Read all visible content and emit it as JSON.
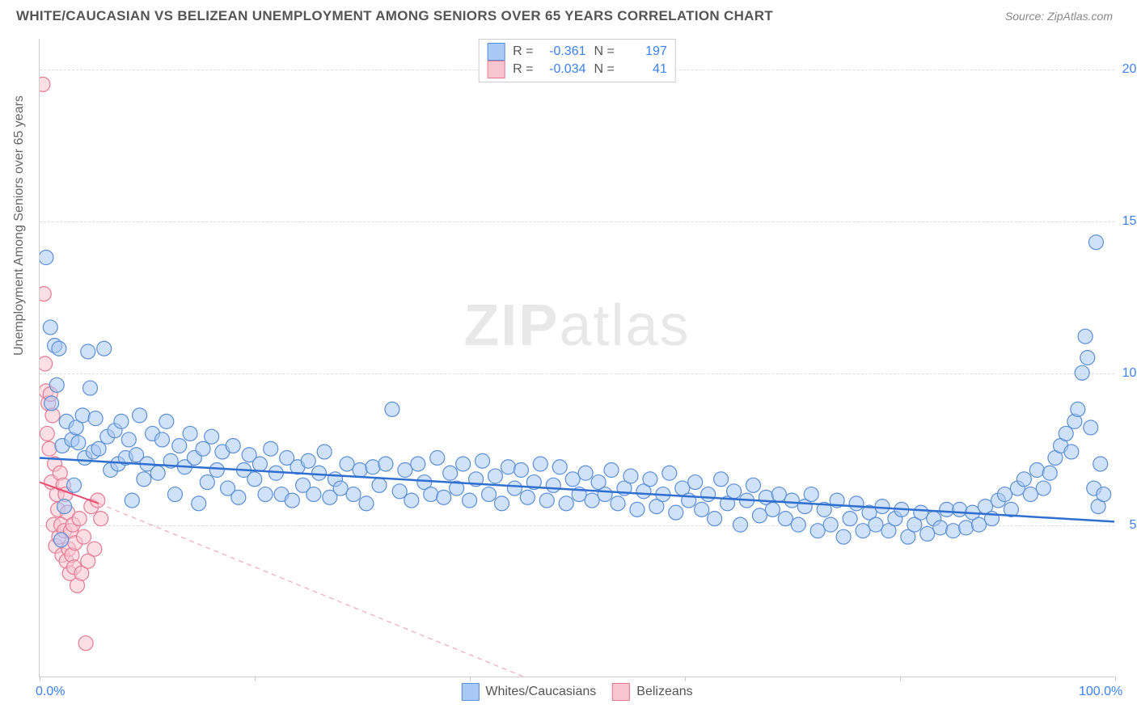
{
  "header": {
    "title": "WHITE/CAUCASIAN VS BELIZEAN UNEMPLOYMENT AMONG SENIORS OVER 65 YEARS CORRELATION CHART",
    "source": "Source: ZipAtlas.com"
  },
  "watermark": {
    "part1": "ZIP",
    "part2": "atlas"
  },
  "chart": {
    "type": "scatter",
    "y_axis_label": "Unemployment Among Seniors over 65 years",
    "xlim": [
      0,
      100
    ],
    "ylim": [
      0,
      21
    ],
    "x_ticks": [
      0,
      20,
      40,
      60,
      80,
      100
    ],
    "x_tick_labels": {
      "0": "0.0%",
      "100": "100.0%"
    },
    "y_ticks": [
      5,
      10,
      15,
      20
    ],
    "y_tick_labels": {
      "5": "5.0%",
      "10": "10.0%",
      "15": "15.0%",
      "20": "20.0%"
    },
    "background_color": "#ffffff",
    "grid_color": "#dddddd",
    "axis_color": "#cccccc",
    "label_color": "#3b82f6",
    "marker_radius": 9,
    "marker_opacity": 0.55,
    "marker_stroke_width": 1.2,
    "series": {
      "whites": {
        "label": "Whites/Caucasians",
        "fill_color": "#a9c9f5",
        "stroke_color": "#5b8fd6",
        "R": "-0.361",
        "N": "197",
        "trend_line": {
          "x1": 0,
          "y1": 7.2,
          "x2": 100,
          "y2": 5.1,
          "color": "#2f6fd0",
          "width": 2.5
        },
        "points": [
          [
            0.6,
            13.8
          ],
          [
            1,
            11.5
          ],
          [
            1.1,
            9
          ],
          [
            1.4,
            10.9
          ],
          [
            1.6,
            9.6
          ],
          [
            1.8,
            10.8
          ],
          [
            2,
            4.5
          ],
          [
            2.1,
            7.6
          ],
          [
            2.3,
            5.6
          ],
          [
            2.5,
            8.4
          ],
          [
            3,
            7.8
          ],
          [
            3.2,
            6.3
          ],
          [
            3.4,
            8.2
          ],
          [
            3.6,
            7.7
          ],
          [
            4,
            8.6
          ],
          [
            4.2,
            7.2
          ],
          [
            4.5,
            10.7
          ],
          [
            4.7,
            9.5
          ],
          [
            5,
            7.4
          ],
          [
            5.2,
            8.5
          ],
          [
            5.5,
            7.5
          ],
          [
            6,
            10.8
          ],
          [
            6.3,
            7.9
          ],
          [
            6.6,
            6.8
          ],
          [
            7,
            8.1
          ],
          [
            7.3,
            7
          ],
          [
            7.6,
            8.4
          ],
          [
            8,
            7.2
          ],
          [
            8.3,
            7.8
          ],
          [
            8.6,
            5.8
          ],
          [
            9,
            7.3
          ],
          [
            9.3,
            8.6
          ],
          [
            9.7,
            6.5
          ],
          [
            10,
            7
          ],
          [
            10.5,
            8.0
          ],
          [
            11,
            6.7
          ],
          [
            11.4,
            7.8
          ],
          [
            11.8,
            8.4
          ],
          [
            12.2,
            7.1
          ],
          [
            12.6,
            6.0
          ],
          [
            13,
            7.6
          ],
          [
            13.5,
            6.9
          ],
          [
            14,
            8.0
          ],
          [
            14.4,
            7.2
          ],
          [
            14.8,
            5.7
          ],
          [
            15.2,
            7.5
          ],
          [
            15.6,
            6.4
          ],
          [
            16,
            7.9
          ],
          [
            16.5,
            6.8
          ],
          [
            17,
            7.4
          ],
          [
            17.5,
            6.2
          ],
          [
            18,
            7.6
          ],
          [
            18.5,
            5.9
          ],
          [
            19,
            6.8
          ],
          [
            19.5,
            7.3
          ],
          [
            20,
            6.5
          ],
          [
            20.5,
            7.0
          ],
          [
            21,
            6.0
          ],
          [
            21.5,
            7.5
          ],
          [
            22,
            6.7
          ],
          [
            22.5,
            6.0
          ],
          [
            23,
            7.2
          ],
          [
            23.5,
            5.8
          ],
          [
            24,
            6.9
          ],
          [
            24.5,
            6.3
          ],
          [
            25,
            7.1
          ],
          [
            25.5,
            6.0
          ],
          [
            26,
            6.7
          ],
          [
            26.5,
            7.4
          ],
          [
            27,
            5.9
          ],
          [
            27.5,
            6.5
          ],
          [
            28,
            6.2
          ],
          [
            28.6,
            7.0
          ],
          [
            29.2,
            6.0
          ],
          [
            29.8,
            6.8
          ],
          [
            30.4,
            5.7
          ],
          [
            31,
            6.9
          ],
          [
            31.6,
            6.3
          ],
          [
            32.2,
            7.0
          ],
          [
            32.8,
            8.8
          ],
          [
            33.5,
            6.1
          ],
          [
            34,
            6.8
          ],
          [
            34.6,
            5.8
          ],
          [
            35.2,
            7.0
          ],
          [
            35.8,
            6.4
          ],
          [
            36.4,
            6.0
          ],
          [
            37,
            7.2
          ],
          [
            37.6,
            5.9
          ],
          [
            38.2,
            6.7
          ],
          [
            38.8,
            6.2
          ],
          [
            39.4,
            7.0
          ],
          [
            40,
            5.8
          ],
          [
            40.6,
            6.5
          ],
          [
            41.2,
            7.1
          ],
          [
            41.8,
            6.0
          ],
          [
            42.4,
            6.6
          ],
          [
            43,
            5.7
          ],
          [
            43.6,
            6.9
          ],
          [
            44.2,
            6.2
          ],
          [
            44.8,
            6.8
          ],
          [
            45.4,
            5.9
          ],
          [
            46,
            6.4
          ],
          [
            46.6,
            7.0
          ],
          [
            47.2,
            5.8
          ],
          [
            47.8,
            6.3
          ],
          [
            48.4,
            6.9
          ],
          [
            49,
            5.7
          ],
          [
            49.6,
            6.5
          ],
          [
            50.2,
            6.0
          ],
          [
            50.8,
            6.7
          ],
          [
            51.4,
            5.8
          ],
          [
            52,
            6.4
          ],
          [
            52.6,
            6.0
          ],
          [
            53.2,
            6.8
          ],
          [
            53.8,
            5.7
          ],
          [
            54.4,
            6.2
          ],
          [
            55,
            6.6
          ],
          [
            55.6,
            5.5
          ],
          [
            56.2,
            6.1
          ],
          [
            56.8,
            6.5
          ],
          [
            57.4,
            5.6
          ],
          [
            58,
            6.0
          ],
          [
            58.6,
            6.7
          ],
          [
            59.2,
            5.4
          ],
          [
            59.8,
            6.2
          ],
          [
            60.4,
            5.8
          ],
          [
            61,
            6.4
          ],
          [
            61.6,
            5.5
          ],
          [
            62.2,
            6.0
          ],
          [
            62.8,
            5.2
          ],
          [
            63.4,
            6.5
          ],
          [
            64,
            5.7
          ],
          [
            64.6,
            6.1
          ],
          [
            65.2,
            5.0
          ],
          [
            65.8,
            5.8
          ],
          [
            66.4,
            6.3
          ],
          [
            67,
            5.3
          ],
          [
            67.6,
            5.9
          ],
          [
            68.2,
            5.5
          ],
          [
            68.8,
            6.0
          ],
          [
            69.4,
            5.2
          ],
          [
            70,
            5.8
          ],
          [
            70.6,
            5.0
          ],
          [
            71.2,
            5.6
          ],
          [
            71.8,
            6.0
          ],
          [
            72.4,
            4.8
          ],
          [
            73,
            5.5
          ],
          [
            73.6,
            5.0
          ],
          [
            74.2,
            5.8
          ],
          [
            74.8,
            4.6
          ],
          [
            75.4,
            5.2
          ],
          [
            76,
            5.7
          ],
          [
            76.6,
            4.8
          ],
          [
            77.2,
            5.4
          ],
          [
            77.8,
            5.0
          ],
          [
            78.4,
            5.6
          ],
          [
            79,
            4.8
          ],
          [
            79.6,
            5.2
          ],
          [
            80.2,
            5.5
          ],
          [
            80.8,
            4.6
          ],
          [
            81.4,
            5.0
          ],
          [
            82,
            5.4
          ],
          [
            82.6,
            4.7
          ],
          [
            83.2,
            5.2
          ],
          [
            83.8,
            4.9
          ],
          [
            84.4,
            5.5
          ],
          [
            85,
            4.8
          ],
          [
            85.6,
            5.5
          ],
          [
            86.2,
            4.9
          ],
          [
            86.8,
            5.4
          ],
          [
            87.4,
            5.0
          ],
          [
            88,
            5.6
          ],
          [
            88.6,
            5.2
          ],
          [
            89.2,
            5.8
          ],
          [
            89.8,
            6.0
          ],
          [
            90.4,
            5.5
          ],
          [
            91,
            6.2
          ],
          [
            91.6,
            6.5
          ],
          [
            92.2,
            6.0
          ],
          [
            92.8,
            6.8
          ],
          [
            93.4,
            6.2
          ],
          [
            94,
            6.7
          ],
          [
            94.5,
            7.2
          ],
          [
            95,
            7.6
          ],
          [
            95.5,
            8.0
          ],
          [
            96,
            7.4
          ],
          [
            96.3,
            8.4
          ],
          [
            96.6,
            8.8
          ],
          [
            97,
            10.0
          ],
          [
            97.3,
            11.2
          ],
          [
            97.5,
            10.5
          ],
          [
            97.8,
            8.2
          ],
          [
            98.1,
            6.2
          ],
          [
            98.3,
            14.3
          ],
          [
            98.5,
            5.6
          ],
          [
            98.7,
            7.0
          ],
          [
            99,
            6.0
          ]
        ]
      },
      "belizeans": {
        "label": "Belizeans",
        "fill_color": "#f7c5d0",
        "stroke_color": "#e57a94",
        "R": "-0.034",
        "N": "41",
        "trend_line": {
          "x1": 0,
          "y1": 6.4,
          "x2": 5.5,
          "y2": 5.7,
          "color": "#e84c6f",
          "width": 2
        },
        "trend_dashed": {
          "x1": 5.5,
          "y1": 5.7,
          "x2": 45,
          "y2": 0,
          "color": "#f5a8b8",
          "dash": "6 5"
        },
        "points": [
          [
            0.3,
            19.5
          ],
          [
            0.4,
            12.6
          ],
          [
            0.5,
            10.3
          ],
          [
            0.6,
            9.4
          ],
          [
            0.7,
            8.0
          ],
          [
            0.8,
            9.0
          ],
          [
            0.9,
            7.5
          ],
          [
            1.0,
            9.3
          ],
          [
            1.1,
            6.4
          ],
          [
            1.2,
            8.6
          ],
          [
            1.3,
            5.0
          ],
          [
            1.4,
            7.0
          ],
          [
            1.5,
            4.3
          ],
          [
            1.6,
            6.0
          ],
          [
            1.7,
            5.5
          ],
          [
            1.8,
            4.6
          ],
          [
            1.9,
            6.7
          ],
          [
            2.0,
            5.0
          ],
          [
            2.1,
            4.0
          ],
          [
            2.2,
            6.3
          ],
          [
            2.3,
            4.8
          ],
          [
            2.4,
            6.0
          ],
          [
            2.5,
            3.8
          ],
          [
            2.6,
            5.4
          ],
          [
            2.7,
            4.2
          ],
          [
            2.8,
            3.4
          ],
          [
            2.9,
            4.8
          ],
          [
            3.0,
            4.0
          ],
          [
            3.1,
            5.0
          ],
          [
            3.2,
            3.6
          ],
          [
            3.3,
            4.4
          ],
          [
            3.5,
            3.0
          ],
          [
            3.7,
            5.2
          ],
          [
            3.9,
            3.4
          ],
          [
            4.1,
            4.6
          ],
          [
            4.3,
            1.1
          ],
          [
            4.5,
            3.8
          ],
          [
            4.8,
            5.6
          ],
          [
            5.1,
            4.2
          ],
          [
            5.4,
            5.8
          ],
          [
            5.7,
            5.2
          ]
        ]
      }
    }
  },
  "legend_top": {
    "rows": [
      {
        "swatch_fill": "#a9c9f5",
        "swatch_border": "#5b8fd6",
        "r_label": "R =",
        "r_val": "-0.361",
        "n_label": "N =",
        "n_val": "197"
      },
      {
        "swatch_fill": "#f7c5d0",
        "swatch_border": "#e57a94",
        "r_label": "R =",
        "r_val": "-0.034",
        "n_label": "N =",
        "n_val": "41"
      }
    ]
  },
  "legend_bottom": {
    "items": [
      {
        "swatch_fill": "#a9c9f5",
        "swatch_border": "#5b8fd6",
        "label": "Whites/Caucasians"
      },
      {
        "swatch_fill": "#f7c5d0",
        "swatch_border": "#e57a94",
        "label": "Belizeans"
      }
    ]
  }
}
